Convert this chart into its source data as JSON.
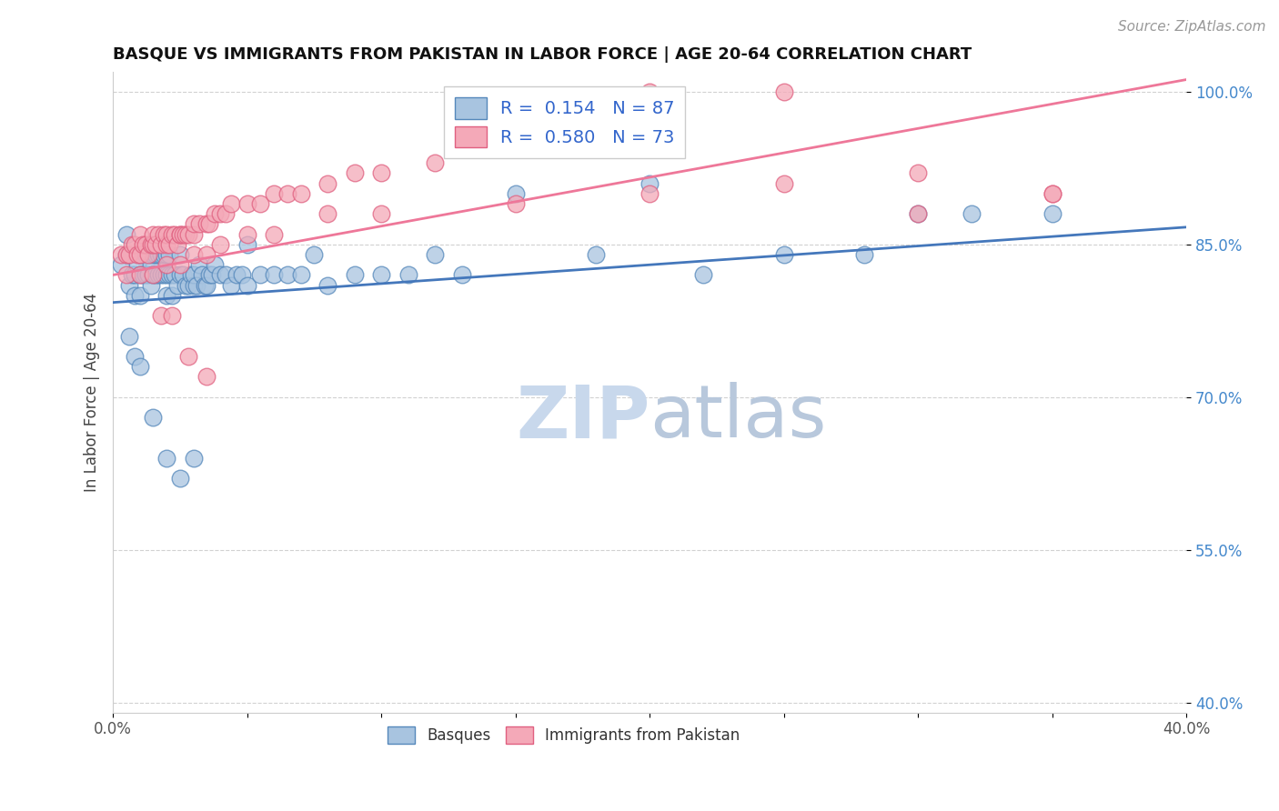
{
  "title": "BASQUE VS IMMIGRANTS FROM PAKISTAN IN LABOR FORCE | AGE 20-64 CORRELATION CHART",
  "source": "Source: ZipAtlas.com",
  "ylabel": "In Labor Force | Age 20-64",
  "xlim": [
    0.0,
    0.4
  ],
  "ylim": [
    0.39,
    1.02
  ],
  "yticks": [
    0.4,
    0.55,
    0.7,
    0.85,
    1.0
  ],
  "ytick_labels": [
    "40.0%",
    "55.0%",
    "70.0%",
    "85.0%",
    "100.0%"
  ],
  "xticks": [
    0.0,
    0.05,
    0.1,
    0.15,
    0.2,
    0.25,
    0.3,
    0.35,
    0.4
  ],
  "xtick_labels": [
    "0.0%",
    "",
    "",
    "",
    "",
    "",
    "",
    "",
    "40.0%"
  ],
  "blue_R": 0.154,
  "blue_N": 87,
  "pink_R": 0.58,
  "pink_N": 73,
  "blue_color": "#A8C4E0",
  "pink_color": "#F4A9B8",
  "blue_edge_color": "#5588BB",
  "pink_edge_color": "#E06080",
  "blue_line_color": "#4477BB",
  "pink_line_color": "#EE7799",
  "blue_line_x": [
    0.0,
    0.4
  ],
  "blue_line_y": [
    0.793,
    0.867
  ],
  "pink_line_x": [
    0.0,
    0.4
  ],
  "pink_line_y": [
    0.82,
    1.012
  ],
  "blue_scatter_x": [
    0.003,
    0.005,
    0.005,
    0.006,
    0.007,
    0.008,
    0.008,
    0.009,
    0.01,
    0.01,
    0.01,
    0.011,
    0.012,
    0.012,
    0.013,
    0.013,
    0.014,
    0.014,
    0.015,
    0.015,
    0.016,
    0.016,
    0.017,
    0.017,
    0.018,
    0.018,
    0.019,
    0.019,
    0.02,
    0.02,
    0.02,
    0.021,
    0.021,
    0.022,
    0.022,
    0.023,
    0.024,
    0.025,
    0.025,
    0.026,
    0.027,
    0.028,
    0.029,
    0.03,
    0.03,
    0.031,
    0.032,
    0.033,
    0.034,
    0.035,
    0.036,
    0.037,
    0.038,
    0.04,
    0.042,
    0.044,
    0.046,
    0.048,
    0.05,
    0.055,
    0.06,
    0.065,
    0.07,
    0.075,
    0.08,
    0.09,
    0.1,
    0.11,
    0.12,
    0.13,
    0.15,
    0.18,
    0.2,
    0.22,
    0.25,
    0.28,
    0.3,
    0.32,
    0.35,
    0.006,
    0.008,
    0.01,
    0.015,
    0.02,
    0.025,
    0.03,
    0.05
  ],
  "blue_scatter_y": [
    0.83,
    0.84,
    0.86,
    0.81,
    0.82,
    0.8,
    0.82,
    0.83,
    0.84,
    0.82,
    0.8,
    0.82,
    0.82,
    0.84,
    0.82,
    0.84,
    0.81,
    0.83,
    0.82,
    0.84,
    0.82,
    0.84,
    0.82,
    0.84,
    0.82,
    0.84,
    0.82,
    0.84,
    0.82,
    0.84,
    0.8,
    0.82,
    0.84,
    0.82,
    0.8,
    0.82,
    0.81,
    0.82,
    0.84,
    0.82,
    0.81,
    0.81,
    0.82,
    0.81,
    0.82,
    0.81,
    0.83,
    0.82,
    0.81,
    0.81,
    0.82,
    0.82,
    0.83,
    0.82,
    0.82,
    0.81,
    0.82,
    0.82,
    0.81,
    0.82,
    0.82,
    0.82,
    0.82,
    0.84,
    0.81,
    0.82,
    0.82,
    0.82,
    0.84,
    0.82,
    0.9,
    0.84,
    0.91,
    0.82,
    0.84,
    0.84,
    0.88,
    0.88,
    0.88,
    0.76,
    0.74,
    0.73,
    0.68,
    0.64,
    0.62,
    0.64,
    0.85
  ],
  "pink_scatter_x": [
    0.003,
    0.005,
    0.006,
    0.007,
    0.008,
    0.009,
    0.01,
    0.01,
    0.011,
    0.012,
    0.013,
    0.014,
    0.015,
    0.015,
    0.016,
    0.017,
    0.018,
    0.019,
    0.02,
    0.02,
    0.021,
    0.022,
    0.023,
    0.024,
    0.025,
    0.025,
    0.026,
    0.027,
    0.028,
    0.03,
    0.03,
    0.032,
    0.035,
    0.036,
    0.038,
    0.04,
    0.042,
    0.044,
    0.05,
    0.055,
    0.06,
    0.065,
    0.07,
    0.08,
    0.09,
    0.1,
    0.12,
    0.15,
    0.2,
    0.25,
    0.3,
    0.35,
    0.005,
    0.01,
    0.015,
    0.02,
    0.025,
    0.03,
    0.035,
    0.04,
    0.05,
    0.06,
    0.08,
    0.1,
    0.15,
    0.2,
    0.25,
    0.3,
    0.35,
    0.018,
    0.022,
    0.028,
    0.035
  ],
  "pink_scatter_y": [
    0.84,
    0.84,
    0.84,
    0.85,
    0.85,
    0.84,
    0.84,
    0.86,
    0.85,
    0.85,
    0.84,
    0.85,
    0.85,
    0.86,
    0.85,
    0.86,
    0.85,
    0.86,
    0.85,
    0.86,
    0.85,
    0.86,
    0.86,
    0.85,
    0.86,
    0.86,
    0.86,
    0.86,
    0.86,
    0.86,
    0.87,
    0.87,
    0.87,
    0.87,
    0.88,
    0.88,
    0.88,
    0.89,
    0.89,
    0.89,
    0.9,
    0.9,
    0.9,
    0.91,
    0.92,
    0.92,
    0.93,
    0.96,
    1.0,
    1.0,
    0.88,
    0.9,
    0.82,
    0.82,
    0.82,
    0.83,
    0.83,
    0.84,
    0.84,
    0.85,
    0.86,
    0.86,
    0.88,
    0.88,
    0.89,
    0.9,
    0.91,
    0.92,
    0.9,
    0.78,
    0.78,
    0.74,
    0.72
  ],
  "watermark_zip_color": "#C8D8EC",
  "watermark_atlas_color": "#B8C8DC",
  "legend_blue_label": "R =  0.154   N = 87",
  "legend_pink_label": "R =  0.580   N = 73"
}
